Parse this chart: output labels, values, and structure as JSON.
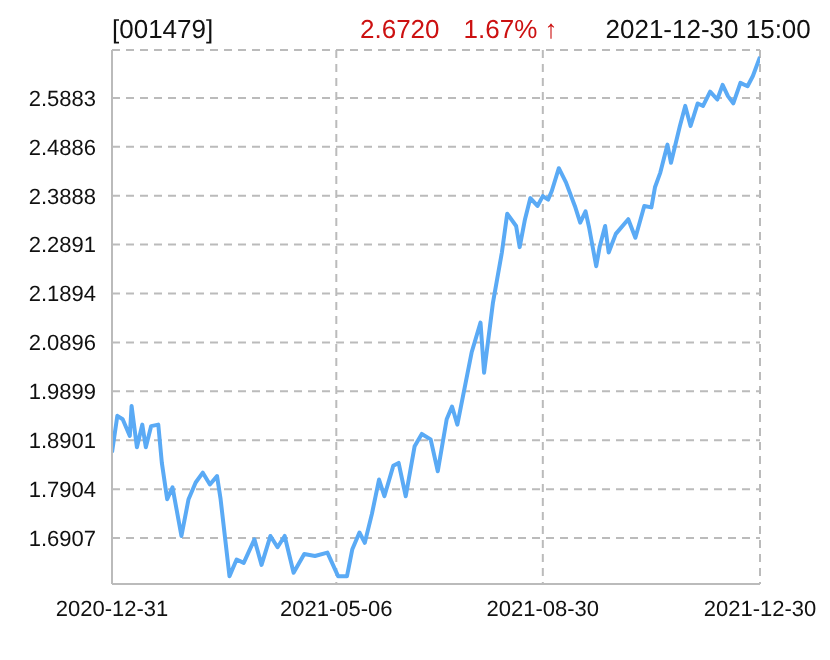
{
  "chart_data": {
    "type": "line",
    "title": "[001479]",
    "annotations": [
      "2.6720",
      "1.67% ↑",
      "2021-12-30 15:00"
    ],
    "x": [
      "2020-12-31",
      "2021-01-03",
      "2021-01-06",
      "2021-01-10",
      "2021-01-11",
      "2021-01-14",
      "2021-01-17",
      "2021-01-19",
      "2021-01-22",
      "2021-01-26",
      "2021-01-28",
      "2021-01-31",
      "2021-02-03",
      "2021-02-08",
      "2021-02-12",
      "2021-02-16",
      "2021-02-20",
      "2021-02-24",
      "2021-02-28",
      "2021-03-02",
      "2021-03-07",
      "2021-03-11",
      "2021-03-15",
      "2021-03-21",
      "2021-03-25",
      "2021-03-30",
      "2021-04-03",
      "2021-04-07",
      "2021-04-12",
      "2021-04-18",
      "2021-04-24",
      "2021-05-01",
      "2021-05-07",
      "2021-05-12",
      "2021-05-15",
      "2021-05-19",
      "2021-05-22",
      "2021-05-26",
      "2021-05-30",
      "2021-06-02",
      "2021-06-07",
      "2021-06-10",
      "2021-06-14",
      "2021-06-19",
      "2021-06-23",
      "2021-06-28",
      "2021-07-02",
      "2021-07-07",
      "2021-07-10",
      "2021-07-13",
      "2021-07-21",
      "2021-07-26",
      "2021-07-28",
      "2021-08-02",
      "2021-08-07",
      "2021-08-10",
      "2021-08-15",
      "2021-08-17",
      "2021-08-20",
      "2021-08-23",
      "2021-08-27",
      "2021-08-30",
      "2021-09-02",
      "2021-09-04",
      "2021-09-08",
      "2021-09-12",
      "2021-09-17",
      "2021-09-20",
      "2021-09-23",
      "2021-09-25",
      "2021-09-29",
      "2021-10-01",
      "2021-10-04",
      "2021-10-06",
      "2021-10-10",
      "2021-10-17",
      "2021-10-21",
      "2021-10-26",
      "2021-10-30",
      "2021-11-01",
      "2021-11-04",
      "2021-11-08",
      "2021-11-10",
      "2021-11-15",
      "2021-11-18",
      "2021-11-21",
      "2021-11-25",
      "2021-11-28",
      "2021-12-02",
      "2021-12-06",
      "2021-12-09",
      "2021-12-12",
      "2021-12-15",
      "2021-12-19",
      "2021-12-23",
      "2021-12-26",
      "2021-12-30"
    ],
    "series": [
      {
        "color": "#5aaaf5",
        "values": [
          1.865,
          1.94,
          1.933,
          1.899,
          1.96,
          1.876,
          1.922,
          1.876,
          1.919,
          1.922,
          1.844,
          1.77,
          1.794,
          1.695,
          1.77,
          1.804,
          1.824,
          1.8,
          1.817,
          1.77,
          1.613,
          1.647,
          1.64,
          1.688,
          1.636,
          1.695,
          1.672,
          1.695,
          1.62,
          1.658,
          1.654,
          1.661,
          1.613,
          1.613,
          1.668,
          1.702,
          1.681,
          1.74,
          1.81,
          1.776,
          1.838,
          1.844,
          1.776,
          1.878,
          1.903,
          1.892,
          1.827,
          1.933,
          1.959,
          1.922,
          2.069,
          2.13,
          2.028,
          2.171,
          2.273,
          2.352,
          2.327,
          2.284,
          2.341,
          2.384,
          2.368,
          2.388,
          2.381,
          2.398,
          2.445,
          2.416,
          2.368,
          2.334,
          2.357,
          2.324,
          2.245,
          2.286,
          2.327,
          2.273,
          2.311,
          2.341,
          2.303,
          2.368,
          2.365,
          2.406,
          2.436,
          2.493,
          2.456,
          2.531,
          2.572,
          2.531,
          2.577,
          2.572,
          2.601,
          2.585,
          2.615,
          2.592,
          2.577,
          2.619,
          2.612,
          2.633,
          2.672
        ]
      }
    ],
    "xlim": [
      "2020-12-31",
      "2021-12-30"
    ],
    "xticks": [
      "2020-12-31",
      "2021-05-06",
      "2021-08-30",
      "2021-12-30"
    ],
    "ylim": [
      1.597,
      2.686
    ],
    "yticks": [
      1.6907,
      1.7904,
      1.8901,
      1.9899,
      2.0896,
      2.1894,
      2.2891,
      2.3888,
      2.4886,
      2.5883
    ],
    "grid": true,
    "legend": false,
    "marker": "none",
    "line_style": "solid"
  }
}
